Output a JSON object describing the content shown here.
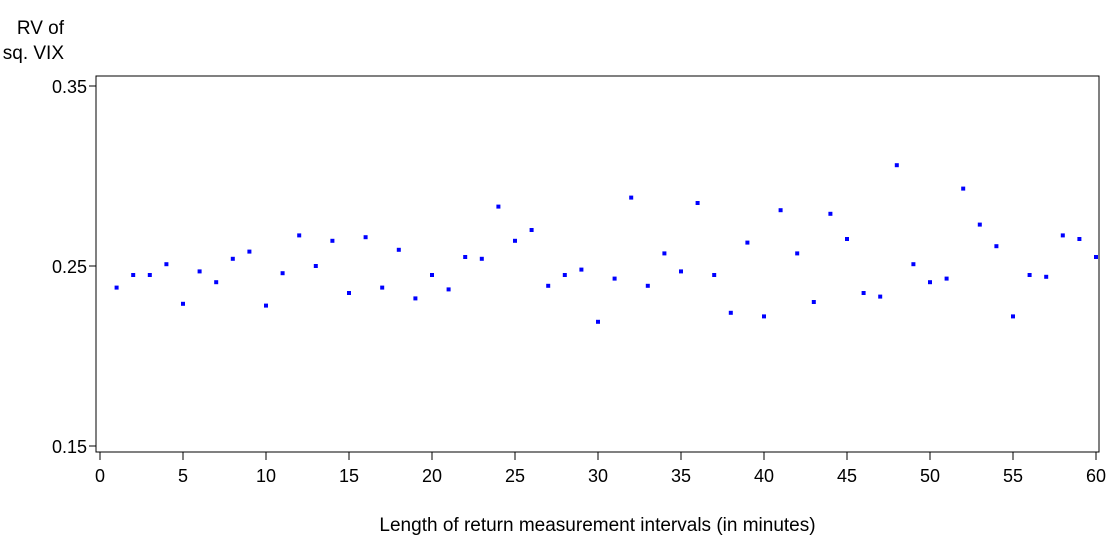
{
  "chart_data": {
    "type": "scatter",
    "title": "",
    "xlabel": "Length of return measurement intervals (in minutes)",
    "ylabel_lines": [
      "RV of",
      "sq. VIX"
    ],
    "xlim": [
      0,
      60
    ],
    "ylim": [
      0.15,
      0.35
    ],
    "x_ticks": [
      0,
      5,
      10,
      15,
      20,
      25,
      30,
      35,
      40,
      45,
      50,
      55,
      60
    ],
    "x_tick_labels": [
      "0",
      "5",
      "10",
      "15",
      "20",
      "25",
      "30",
      "35",
      "40",
      "45",
      "50",
      "55",
      "60"
    ],
    "y_ticks": [
      0.15,
      0.25,
      0.35
    ],
    "y_tick_labels": [
      "0.15",
      "0.25",
      "0.35"
    ],
    "grid": false,
    "legend": "none",
    "marker_color": "#0000ff",
    "series": [
      {
        "x": [
          1,
          2,
          3,
          4,
          5,
          6,
          7,
          8,
          9,
          10,
          11,
          12,
          13,
          14,
          15,
          16,
          17,
          18,
          19,
          20,
          21,
          22,
          23,
          24,
          25,
          26,
          27,
          28,
          29,
          30,
          31,
          32,
          33,
          34,
          35,
          36,
          37,
          38,
          39,
          40,
          41,
          42,
          43,
          44,
          45,
          46,
          47,
          48,
          49,
          50,
          51,
          52,
          53,
          54,
          55,
          56,
          57,
          58,
          59,
          60
        ],
        "y": [
          0.238,
          0.245,
          0.245,
          0.251,
          0.229,
          0.247,
          0.241,
          0.254,
          0.258,
          0.228,
          0.246,
          0.267,
          0.25,
          0.264,
          0.235,
          0.266,
          0.238,
          0.259,
          0.232,
          0.245,
          0.237,
          0.255,
          0.254,
          0.283,
          0.264,
          0.27,
          0.239,
          0.245,
          0.248,
          0.219,
          0.243,
          0.288,
          0.239,
          0.257,
          0.247,
          0.285,
          0.245,
          0.224,
          0.263,
          0.222,
          0.281,
          0.257,
          0.23,
          0.279,
          0.265,
          0.235,
          0.233,
          0.306,
          0.251,
          0.241,
          0.243,
          0.293,
          0.273,
          0.261,
          0.222,
          0.245,
          0.244,
          0.267,
          0.265,
          0.255
        ]
      }
    ]
  }
}
